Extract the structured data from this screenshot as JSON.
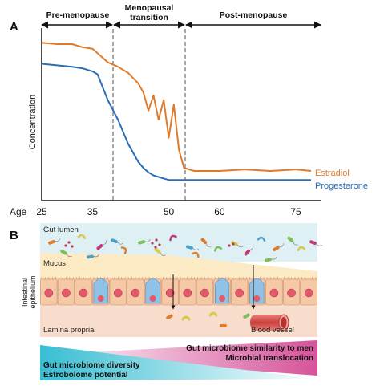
{
  "panel_a": {
    "label": "A",
    "phases": [
      {
        "label": "Pre-menopause"
      },
      {
        "label": "Menopausal transition",
        "label_lines": [
          "Menopausal",
          "transition"
        ]
      },
      {
        "label": "Post-menopause"
      }
    ],
    "y_axis_label": "Concentration",
    "x_axis_title": "Age",
    "x_ticks": [
      "25",
      "35",
      "50",
      "60",
      "75"
    ],
    "series": [
      {
        "name": "Estradiol",
        "color": "#e07b2a"
      },
      {
        "name": "Progesterone",
        "color": "#2a6db5"
      }
    ]
  },
  "chart_data": {
    "type": "line",
    "x": [
      25,
      28,
      31,
      33,
      35,
      36,
      38,
      40,
      42,
      44,
      45,
      46,
      47,
      48,
      49,
      50,
      51,
      52,
      53,
      55,
      60,
      65,
      70,
      75,
      78
    ],
    "series": [
      {
        "name": "Estradiol",
        "values": [
          0.93,
          0.92,
          0.92,
          0.9,
          0.89,
          0.86,
          0.8,
          0.77,
          0.73,
          0.66,
          0.6,
          0.48,
          0.58,
          0.42,
          0.55,
          0.3,
          0.52,
          0.22,
          0.1,
          0.08,
          0.08,
          0.09,
          0.08,
          0.09,
          0.08
        ]
      },
      {
        "name": "Progesterone",
        "values": [
          0.79,
          0.78,
          0.77,
          0.76,
          0.74,
          0.72,
          0.55,
          0.42,
          0.26,
          0.14,
          0.1,
          0.07,
          0.05,
          0.04,
          0.03,
          0.02,
          0.02,
          0.02,
          0.02,
          0.02,
          0.02,
          0.02,
          0.02,
          0.02,
          0.02
        ]
      }
    ],
    "xlabel": "Age",
    "ylabel": "Concentration",
    "xlim": [
      25,
      78
    ],
    "ylim": [
      0,
      1
    ],
    "grid": false
  },
  "panel_b": {
    "label": "B",
    "layers": {
      "lumen": "Gut lumen",
      "mucus": "Mucus",
      "epithelium": "Intestinal epithelium",
      "epithelium_lines": [
        "Intestinal",
        "epithelium"
      ],
      "lamina": "Lamina propria",
      "vessel": "Blood vessel"
    },
    "wedges": {
      "increasing": [
        "Gut microbiome similarity to men",
        "Microbial translocation"
      ],
      "decreasing": [
        "Gut microbiome diversity",
        "Estrobolome potential"
      ]
    },
    "colors": {
      "lumen": "#dff0f4",
      "mucus": "#fbeac4",
      "lamina": "#f8dccc",
      "cell": "#f5c9a6",
      "goblet": "#8fc2e6",
      "nucleus": "#e35a6a",
      "pink_wedge": "#d6539a",
      "blue_wedge": "#4cc6d8",
      "vessel": "#d9534f"
    }
  }
}
